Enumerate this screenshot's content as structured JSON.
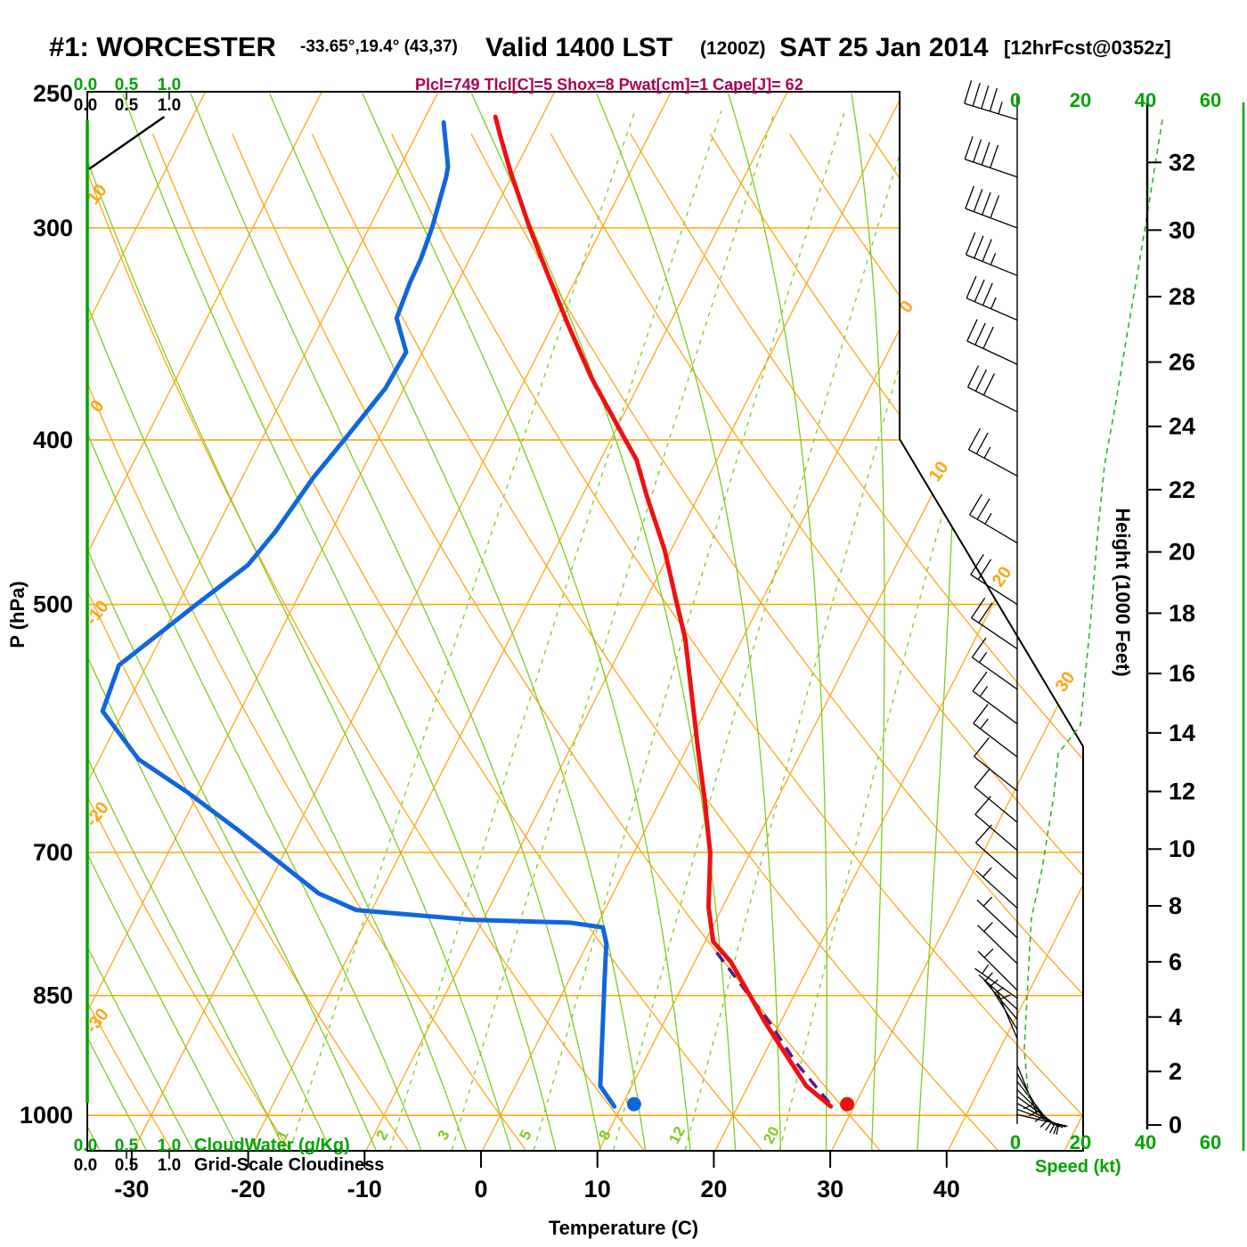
{
  "title": {
    "station": "#1: WORCESTER",
    "coords": "-33.65°,19.4° (43,37)",
    "valid": "Valid 1400 LST",
    "zulu": "(1200Z)",
    "date": "SAT 25 Jan 2014",
    "fcst": "[12hrFcst@0352z]"
  },
  "params_line": "Plcl=749 Tlcl[C]=5 Shox=8 Pwat[cm]=1 Cape[J]= 62",
  "axes": {
    "pressure": {
      "label": "P (hPa)",
      "ticks": [
        250,
        300,
        400,
        500,
        700,
        850,
        1000
      ]
    },
    "temperature": {
      "label": "Temperature (C)",
      "ticks": [
        -30,
        -20,
        -10,
        0,
        10,
        20,
        30,
        40
      ]
    },
    "height": {
      "label": "Height (1000 Feet)",
      "ticks": [
        0,
        2,
        4,
        6,
        8,
        10,
        12,
        14,
        16,
        18,
        20,
        22,
        24,
        26,
        28,
        30,
        32
      ]
    },
    "speed": {
      "label": "Speed (kt)",
      "ticks": [
        0,
        20,
        40,
        60
      ]
    },
    "cloudwater": {
      "label": "CloudWater (g/Kg)",
      "scale": [
        "0.0",
        "0.5",
        "1.0"
      ]
    },
    "cloudiness": {
      "label": "Grid-Scale Cloudiness",
      "scale": [
        "0.0",
        "0.5",
        "1.0"
      ]
    }
  },
  "chart_data": {
    "type": "skewt",
    "pressure_range_hpa": [
      250,
      1050
    ],
    "temp_axis_c": [
      -30,
      40
    ],
    "isotherms": {
      "min": -80,
      "max": 50,
      "step": 10
    },
    "dry_adiabats": {
      "min": -60,
      "max": 120,
      "step": 10
    },
    "moist_adiabats": {
      "min": -44,
      "max": 36,
      "step": 4
    },
    "mixing_ratio_lines": [
      1,
      2,
      3,
      5,
      8,
      12,
      20
    ],
    "dry_adiabat_labels": [
      10,
      0,
      -10,
      -20,
      -30
    ],
    "isotherm_labels": [
      0,
      10,
      20,
      30
    ],
    "temperature_profile": [
      [
        988,
        28.0
      ],
      [
        961,
        25.0
      ],
      [
        883,
        18.8
      ],
      [
        812,
        13.1
      ],
      [
        790,
        10.7
      ],
      [
        754,
        8.8
      ],
      [
        701,
        6.6
      ],
      [
        652,
        3.8
      ],
      [
        607,
        0.9
      ],
      [
        564,
        -2.0
      ],
      [
        524,
        -4.9
      ],
      [
        498,
        -7.3
      ],
      [
        464,
        -10.6
      ],
      [
        432,
        -14.4
      ],
      [
        411,
        -16.9
      ],
      [
        399,
        -18.9
      ],
      [
        368,
        -24.3
      ],
      [
        342,
        -28.7
      ],
      [
        318,
        -32.9
      ],
      [
        300,
        -36.2
      ],
      [
        278,
        -40.3
      ],
      [
        265,
        -42.7
      ],
      [
        258,
        -44.0
      ]
    ],
    "dewpoint_profile": [
      [
        988,
        9.4
      ],
      [
        961,
        7.3
      ],
      [
        883,
        4.8
      ],
      [
        831,
        3.0
      ],
      [
        792,
        1.6
      ],
      [
        775,
        0.6
      ],
      [
        770,
        -2.4
      ],
      [
        767,
        -11.1
      ],
      [
        757,
        -21.3
      ],
      [
        740,
        -25.3
      ],
      [
        709,
        -30.1
      ],
      [
        679,
        -35.0
      ],
      [
        645,
        -41.0
      ],
      [
        617,
        -46.6
      ],
      [
        578,
        -51.8
      ],
      [
        543,
        -52.4
      ],
      [
        499,
        -48.3
      ],
      [
        474,
        -45.7
      ],
      [
        453,
        -44.8
      ],
      [
        421,
        -43.9
      ],
      [
        398,
        -42.8
      ],
      [
        373,
        -41.6
      ],
      [
        355,
        -41.4
      ],
      [
        339,
        -43.7
      ],
      [
        323,
        -44.1
      ],
      [
        313,
        -44.2
      ],
      [
        300,
        -44.6
      ],
      [
        280,
        -45.6
      ],
      [
        276,
        -45.9
      ],
      [
        260,
        -48.2
      ]
    ],
    "parcel_path": [
      [
        983,
        27.7
      ],
      [
        930,
        23.0
      ],
      [
        883,
        19.2
      ],
      [
        840,
        15.2
      ],
      [
        797,
        11.0
      ]
    ],
    "surface_markers": {
      "temperature": {
        "p": 985,
        "t": 29.3
      },
      "dewpoint": {
        "p": 985,
        "t": 11.0
      }
    },
    "wind_barbs": [
      [
        259,
        45
      ],
      [
        280,
        40
      ],
      [
        300,
        40
      ],
      [
        320,
        35
      ],
      [
        340,
        35
      ],
      [
        361,
        30
      ],
      [
        385,
        30
      ],
      [
        420,
        25
      ],
      [
        460,
        25
      ],
      [
        500,
        20
      ],
      [
        531,
        20
      ],
      [
        561,
        15
      ],
      [
        588,
        15
      ],
      [
        615,
        15
      ],
      [
        644,
        10
      ],
      [
        672,
        10
      ],
      [
        698,
        10
      ],
      [
        726,
        10
      ],
      [
        755,
        5
      ],
      [
        786,
        5
      ],
      [
        814,
        5
      ],
      [
        844,
        5
      ]
    ],
    "surface_fan_barbs": [
      [
        853,
        215
      ],
      [
        866,
        222
      ],
      [
        878,
        230
      ],
      [
        890,
        238
      ],
      [
        901,
        247
      ],
      [
        934,
        68
      ],
      [
        945,
        60
      ],
      [
        955,
        52
      ],
      [
        966,
        44
      ],
      [
        975,
        36
      ],
      [
        984,
        28
      ],
      [
        992,
        20
      ],
      [
        999,
        13
      ]
    ],
    "speed_profile_kt": [
      [
        259,
        45.2
      ],
      [
        295,
        40.5
      ],
      [
        317,
        37.8
      ],
      [
        348,
        34.2
      ],
      [
        382,
        30.7
      ],
      [
        414,
        27.4
      ],
      [
        456,
        25.2
      ],
      [
        514,
        23.0
      ],
      [
        589,
        20.0
      ],
      [
        612,
        13.2
      ],
      [
        648,
        11.8
      ],
      [
        716,
        8.2
      ],
      [
        766,
        4.9
      ],
      [
        851,
        3.6
      ],
      [
        915,
        2.7
      ],
      [
        979,
        4.1
      ]
    ],
    "cloudiness_profile": [
      [
        277,
        0.04
      ],
      [
        258,
        0.94
      ]
    ],
    "cloudwater_profile_value": 0.0
  },
  "colors": {
    "lattice_orange": "#ffa516",
    "lattice_green": "#7ecb1f",
    "axis_green": "#00a400",
    "profile_green": "#2ab32a",
    "temp_red": "#ee1111",
    "dewpoint_blue": "#1166dd",
    "parcel_purple": "#5b1690",
    "params_magenta": "#aa0055",
    "frame_black": "#000000"
  }
}
